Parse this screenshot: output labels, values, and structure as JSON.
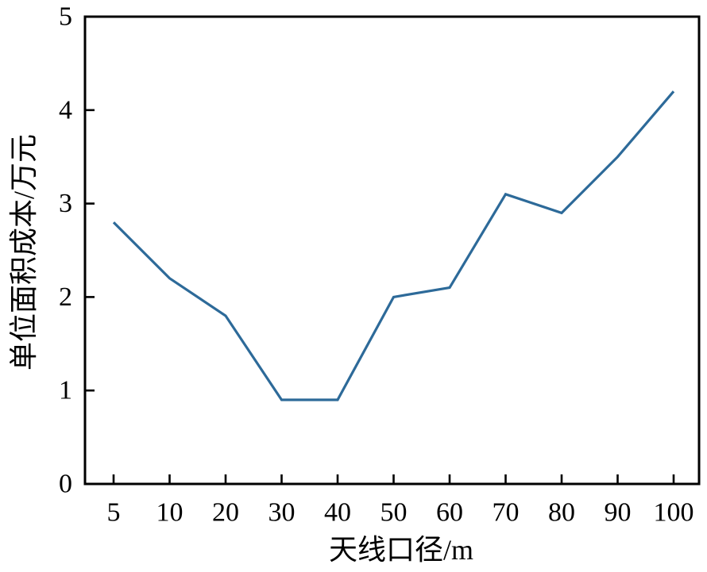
{
  "figure": {
    "background": "#ffffff"
  },
  "chart_data": {
    "type": "line",
    "title": "",
    "categories": [
      "5",
      "10",
      "20",
      "30",
      "40",
      "50",
      "60",
      "70",
      "80",
      "90",
      "100"
    ],
    "values": [
      2.8,
      2.2,
      1.8,
      0.9,
      0.9,
      2.0,
      2.1,
      3.1,
      2.9,
      3.5,
      4.2
    ],
    "xlabel": "天线口径/m",
    "ylabel": "单位面积成本/万元",
    "ylim": [
      0,
      5
    ],
    "y_ticks": [
      0,
      1,
      2,
      3,
      4,
      5
    ],
    "grid": false,
    "legend": "none",
    "markers": "none",
    "line_color": "#2d6a99",
    "axis_color": "#000000",
    "tick_style": "inward"
  }
}
